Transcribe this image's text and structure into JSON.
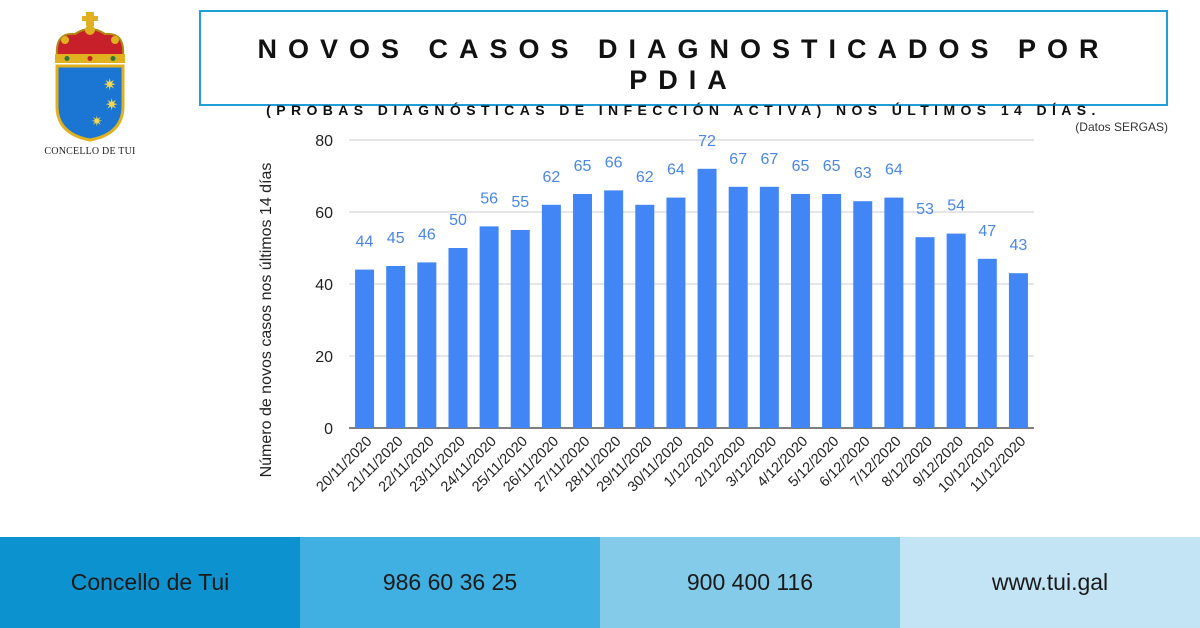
{
  "header": {
    "title": "NOVOS CASOS DIAGNOSTICADOS POR PDIA",
    "subtitle": "(PROBAS DIAGNÓSTICAS DE INFECCIÓN ACTIVA) NOS ÚLTIMOS 14 DÍAS.",
    "source_note": "(Datos SERGAS)"
  },
  "logo": {
    "caption": "CONCELLO DE TUI"
  },
  "footer": {
    "org": "Concello de Tui",
    "phone1": "986 60 36 25",
    "phone2": "900 400 116",
    "website": "www.tui.gal"
  },
  "colors": {
    "bar": "#4285f4",
    "data_label": "#4a86e8",
    "title_border": "#1f9ed8",
    "footer": [
      "#0c93cf",
      "#3fb0e1",
      "#84cbea",
      "#c2e4f4"
    ]
  },
  "chart_data": {
    "type": "bar",
    "title": "",
    "xlabel": "",
    "ylabel": "Número de novos casos nos últimos 14 días",
    "ylim": [
      0,
      80
    ],
    "yticks": [
      0,
      20,
      40,
      60,
      80
    ],
    "grid": true,
    "categories": [
      "20/11/2020",
      "21/11/2020",
      "22/11/2020",
      "23/11/2020",
      "24/11/2020",
      "25/11/2020",
      "26/11/2020",
      "27/11/2020",
      "28/11/2020",
      "29/11/2020",
      "30/11/2020",
      "1/12/2020",
      "2/12/2020",
      "3/12/2020",
      "4/12/2020",
      "5/12/2020",
      "6/12/2020",
      "7/12/2020",
      "8/12/2020",
      "9/12/2020",
      "10/12/2020",
      "11/12/2020"
    ],
    "values": [
      44,
      45,
      46,
      50,
      56,
      55,
      62,
      65,
      66,
      62,
      64,
      72,
      67,
      67,
      65,
      65,
      63,
      64,
      53,
      54,
      47,
      43
    ]
  }
}
